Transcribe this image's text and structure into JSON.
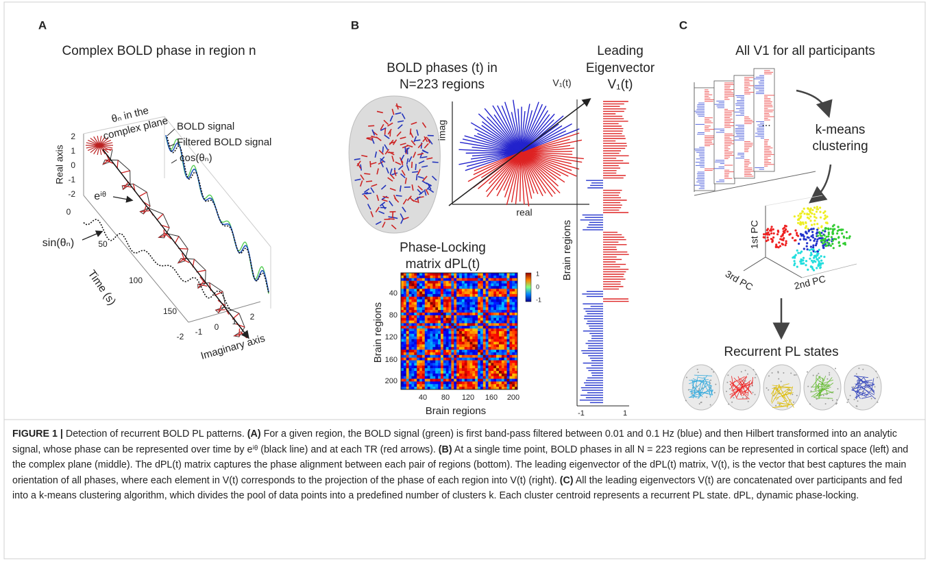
{
  "panel_a": {
    "label": "A",
    "title": "Complex BOLD phase in region n",
    "complex_plane_label": [
      "θₙ in the",
      "complex plane"
    ],
    "legend": [
      "BOLD signal",
      "Filtered BOLD signal",
      "cos(θₙ)"
    ],
    "real_axis_label": "Real axis",
    "real_ticks": [
      "2",
      "1",
      "0",
      "-1",
      "-2"
    ],
    "phase_label": "eⁱᶿ",
    "sin_label": "sin(θₙ)",
    "time_label": "Time (s)",
    "time_ticks": [
      "0",
      "50",
      "100",
      "150"
    ],
    "imag_axis_label": "Imaginary axis",
    "imag_ticks": [
      "-2",
      "-1",
      "0",
      "1",
      "2"
    ]
  },
  "panel_b": {
    "label": "B",
    "title": [
      "BOLD phases (t) in",
      "N=223 regions"
    ],
    "vector_label": "V₁(t)",
    "imag_label": "imag",
    "real_label": "real",
    "eigen_title": [
      "Leading",
      "Eigenvector",
      "V₁(t)"
    ],
    "eigen_axis_label": "Brain regions",
    "eigen_ticks": [
      "-1",
      "1"
    ],
    "matrix_title": [
      "Phase-Locking",
      "matrix dPL(t)"
    ],
    "matrix_y_label": "Brain regions",
    "matrix_x_label": "Brain regions",
    "matrix_ticks": [
      "40",
      "80",
      "120",
      "160",
      "200"
    ],
    "colorbar_ticks": [
      "1",
      "0",
      "-1"
    ]
  },
  "panel_c": {
    "label": "C",
    "title": "All V1 for all participants",
    "ellipsis": "...",
    "clustering_label": [
      "k-means",
      "clustering"
    ],
    "pc_labels": [
      "1st PC",
      "3rd PC",
      "2nd PC"
    ],
    "states_title": "Recurrent PL states"
  },
  "caption": {
    "label": "FIGURE 1 |",
    "intro": " Detection of recurrent BOLD PL patterns. ",
    "a_label": "(A)",
    "a_text": " For a given region, the BOLD signal (green) is first band-pass filtered between 0.01 and 0.1 Hz (blue) and then Hilbert transformed into an analytic signal, whose phase can be represented over time by eⁱᶿ (black line) and at each TR (red arrows). ",
    "b_label": "(B)",
    "b_text": " At a single time point, BOLD phases in all N = 223 regions can be represented in cortical space (left) and the complex plane (middle). The dPL(t) matrix captures the phase alignment between each pair of regions (bottom). The leading eigenvector of the dPL(t) matrix, V(t), is the vector that best captures the main orientation of all phases, where each element in V(t) corresponds to the projection of the phase of each region into V(t) (right). ",
    "c_label": "(C)",
    "c_text": " All the leading eigenvectors V(t) are concatenated over participants and fed into a k-means clustering algorithm, which divides the pool of data points into a predefined number of clusters k. Each cluster centroid represents a recurrent PL state. dPL, dynamic phase-locking."
  }
}
